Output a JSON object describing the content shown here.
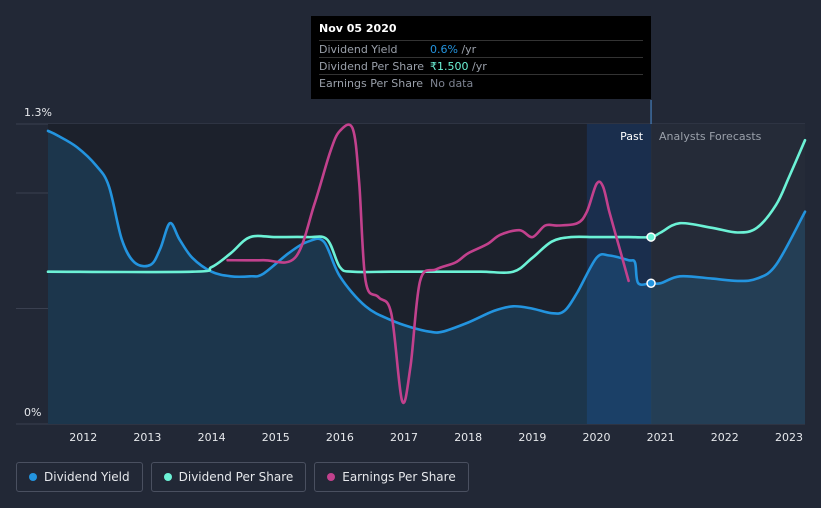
{
  "tooltip": {
    "date": "Nov 05 2020",
    "rows": [
      {
        "label": "Dividend Yield",
        "value": "0.6%",
        "unit": " /yr",
        "color": "#2394df"
      },
      {
        "label": "Dividend Per Share",
        "value": "₹1.500",
        "unit": " /yr",
        "color": "#6cf2d6"
      },
      {
        "label": "Earnings Per Share",
        "value": "No data",
        "unit": "",
        "color": "#7d8391"
      }
    ]
  },
  "legend": [
    {
      "label": "Dividend Yield",
      "color": "#2394df"
    },
    {
      "label": "Dividend Per Share",
      "color": "#6cf2d6"
    },
    {
      "label": "Earnings Per Share",
      "color": "#c2418d"
    }
  ],
  "chart_data": {
    "type": "line",
    "ylim": [
      0,
      1.3
    ],
    "y_tick_labels": [
      "1.3%",
      "0%"
    ],
    "x_tick_labels": [
      "2012",
      "2013",
      "2014",
      "2015",
      "2016",
      "2017",
      "2018",
      "2019",
      "2020",
      "2021",
      "2022",
      "2023"
    ],
    "x_range": [
      2011.45,
      2023.25
    ],
    "region_labels": {
      "past": "Past",
      "forecast": "Analysts Forecasts"
    },
    "divider_x": 2020.85,
    "series": [
      {
        "name": "Dividend Yield",
        "color": "#2394df",
        "area": true,
        "x": [
          2011.45,
          2011.6,
          2011.9,
          2012.2,
          2012.4,
          2012.6,
          2012.8,
          2013.05,
          2013.2,
          2013.35,
          2013.5,
          2013.7,
          2014.0,
          2014.3,
          2014.6,
          2014.8,
          2015.2,
          2015.5,
          2015.75,
          2016.0,
          2016.4,
          2016.8,
          2017.1,
          2017.4,
          2017.6,
          2018.0,
          2018.4,
          2018.7,
          2019.0,
          2019.3,
          2019.5,
          2019.7,
          2020.0,
          2020.2,
          2020.5,
          2020.6,
          2020.65,
          2020.85,
          2021.0,
          2021.3,
          2021.8,
          2022.2,
          2022.5,
          2022.8,
          2023.25
        ],
        "values": [
          1.27,
          1.25,
          1.2,
          1.12,
          1.03,
          0.8,
          0.7,
          0.69,
          0.76,
          0.87,
          0.8,
          0.72,
          0.66,
          0.64,
          0.64,
          0.65,
          0.74,
          0.79,
          0.79,
          0.64,
          0.51,
          0.45,
          0.42,
          0.4,
          0.4,
          0.44,
          0.49,
          0.51,
          0.5,
          0.48,
          0.49,
          0.57,
          0.72,
          0.73,
          0.71,
          0.7,
          0.61,
          0.61,
          0.61,
          0.64,
          0.63,
          0.62,
          0.63,
          0.69,
          0.92
        ]
      },
      {
        "name": "Dividend Per Share",
        "color": "#6cf2d6",
        "area": false,
        "x": [
          2011.45,
          2013.7,
          2014.0,
          2014.3,
          2014.6,
          2015.0,
          2015.5,
          2015.8,
          2016.0,
          2016.2,
          2016.8,
          2017.5,
          2018.2,
          2018.7,
          2019.0,
          2019.3,
          2019.6,
          2020.0,
          2020.5,
          2020.85,
          2021.0,
          2021.3,
          2021.8,
          2022.2,
          2022.5,
          2022.8,
          2023.0,
          2023.25
        ],
        "values": [
          0.66,
          0.66,
          0.68,
          0.74,
          0.81,
          0.81,
          0.81,
          0.8,
          0.68,
          0.66,
          0.66,
          0.66,
          0.66,
          0.66,
          0.72,
          0.79,
          0.81,
          0.81,
          0.81,
          0.81,
          0.83,
          0.87,
          0.85,
          0.83,
          0.85,
          0.95,
          1.07,
          1.23
        ]
      },
      {
        "name": "Earnings Per Share",
        "color": "#c2418d",
        "area": false,
        "x": [
          2014.25,
          2014.8,
          2015.3,
          2015.6,
          2015.85,
          2016.0,
          2016.2,
          2016.3,
          2016.4,
          2016.6,
          2016.8,
          2016.97,
          2017.1,
          2017.25,
          2017.5,
          2017.8,
          2018.0,
          2018.3,
          2018.5,
          2018.8,
          2019.0,
          2019.2,
          2019.4,
          2019.7,
          2019.85,
          2020.0,
          2020.1,
          2020.2,
          2020.35,
          2020.5
        ],
        "values": [
          0.71,
          0.71,
          0.72,
          0.95,
          1.18,
          1.27,
          1.28,
          1.05,
          0.62,
          0.55,
          0.48,
          0.1,
          0.25,
          0.62,
          0.67,
          0.7,
          0.74,
          0.78,
          0.82,
          0.84,
          0.81,
          0.86,
          0.86,
          0.87,
          0.92,
          1.04,
          1.03,
          0.92,
          0.77,
          0.62
        ]
      }
    ],
    "markers": [
      {
        "series": "Dividend Yield",
        "x": 2020.85,
        "y": 0.61
      },
      {
        "series": "Dividend Per Share",
        "x": 2020.85,
        "y": 0.81
      }
    ]
  }
}
